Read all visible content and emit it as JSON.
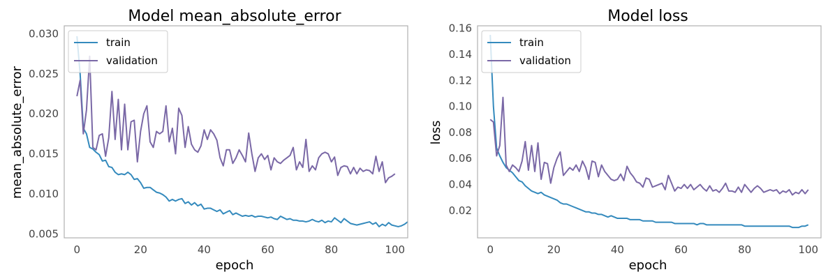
{
  "chart_data": [
    {
      "type": "line",
      "title": "Model mean_absolute_error",
      "xlabel": "epoch",
      "ylabel": "mean_absolute_error",
      "xlim": [
        -4,
        104
      ],
      "ylim": [
        0.0045,
        0.031
      ],
      "xticks": [
        0,
        20,
        40,
        60,
        80,
        100
      ],
      "xtick_labels": [
        "0",
        "20",
        "40",
        "60",
        "80",
        "100"
      ],
      "yticks": [
        0.005,
        0.01,
        0.015,
        0.02,
        0.025,
        0.03
      ],
      "ytick_labels": [
        "0.005",
        "0.010",
        "0.015",
        "0.020",
        "0.025",
        "0.030"
      ],
      "grid": false,
      "legend_position": "top-left",
      "series": [
        {
          "name": "train",
          "color": "#348abd",
          "values": [
            0.0297,
            0.025,
            0.0182,
            0.0175,
            0.0158,
            0.0156,
            0.0152,
            0.0149,
            0.0141,
            0.0142,
            0.0134,
            0.0133,
            0.0127,
            0.0124,
            0.0125,
            0.0124,
            0.0127,
            0.0124,
            0.0118,
            0.0119,
            0.0114,
            0.0107,
            0.0108,
            0.0108,
            0.0105,
            0.0102,
            0.0101,
            0.0099,
            0.0096,
            0.0091,
            0.0093,
            0.0091,
            0.0093,
            0.0094,
            0.0088,
            0.009,
            0.0086,
            0.0089,
            0.0085,
            0.0087,
            0.0081,
            0.0082,
            0.0082,
            0.008,
            0.0078,
            0.008,
            0.0075,
            0.0077,
            0.0079,
            0.0074,
            0.0076,
            0.0074,
            0.0072,
            0.0073,
            0.0072,
            0.0073,
            0.0071,
            0.0072,
            0.0072,
            0.0071,
            0.007,
            0.0071,
            0.0069,
            0.0068,
            0.0072,
            0.007,
            0.0068,
            0.0069,
            0.0067,
            0.0067,
            0.0066,
            0.0066,
            0.0065,
            0.0066,
            0.0068,
            0.0066,
            0.0065,
            0.0067,
            0.0064,
            0.0066,
            0.0065,
            0.007,
            0.0067,
            0.0064,
            0.0069,
            0.0066,
            0.0063,
            0.0062,
            0.0061,
            0.0062,
            0.0063,
            0.0064,
            0.0065,
            0.0062,
            0.0064,
            0.0059,
            0.0062,
            0.006,
            0.0064,
            0.0061,
            0.006,
            0.0059,
            0.006,
            0.0062,
            0.0065
          ]
        },
        {
          "name": "validation",
          "color": "#7a68a6",
          "values": [
            0.0222,
            0.0242,
            0.0175,
            0.0205,
            0.0272,
            0.0158,
            0.0155,
            0.0173,
            0.0175,
            0.0147,
            0.017,
            0.0228,
            0.0168,
            0.0218,
            0.0155,
            0.0212,
            0.0155,
            0.019,
            0.0192,
            0.014,
            0.0178,
            0.02,
            0.021,
            0.0165,
            0.0158,
            0.0178,
            0.0175,
            0.0178,
            0.021,
            0.0165,
            0.0182,
            0.015,
            0.0207,
            0.0198,
            0.0158,
            0.0184,
            0.0162,
            0.0155,
            0.0152,
            0.016,
            0.018,
            0.0168,
            0.018,
            0.0175,
            0.0167,
            0.0145,
            0.0135,
            0.0155,
            0.0155,
            0.0138,
            0.0145,
            0.0155,
            0.0148,
            0.014,
            0.0176,
            0.015,
            0.0128,
            0.0145,
            0.015,
            0.0143,
            0.0148,
            0.013,
            0.0145,
            0.014,
            0.0138,
            0.0142,
            0.0145,
            0.0148,
            0.0158,
            0.013,
            0.014,
            0.0133,
            0.0168,
            0.0128,
            0.0135,
            0.013,
            0.0145,
            0.015,
            0.0152,
            0.015,
            0.014,
            0.0146,
            0.0123,
            0.0133,
            0.0135,
            0.0134,
            0.0125,
            0.0133,
            0.0125,
            0.0132,
            0.0128,
            0.013,
            0.0129,
            0.0125,
            0.0147,
            0.0128,
            0.014,
            0.0114,
            0.012,
            0.0122,
            0.0125
          ]
        }
      ]
    },
    {
      "type": "line",
      "title": "Model loss",
      "xlabel": "epoch",
      "ylabel": "loss",
      "xlim": [
        -4,
        104
      ],
      "ylim": [
        -0.001,
        0.162
      ],
      "xticks": [
        0,
        20,
        40,
        60,
        80,
        100
      ],
      "xtick_labels": [
        "0",
        "20",
        "40",
        "60",
        "80",
        "100"
      ],
      "yticks": [
        0.02,
        0.04,
        0.06,
        0.08,
        0.1,
        0.12,
        0.14,
        0.16
      ],
      "ytick_labels": [
        "0.02",
        "0.04",
        "0.06",
        "0.08",
        "0.10",
        "0.12",
        "0.14",
        "0.16"
      ],
      "grid": false,
      "legend_position": "top-left",
      "series": [
        {
          "name": "train",
          "color": "#348abd",
          "values": [
            0.155,
            0.1,
            0.068,
            0.062,
            0.057,
            0.053,
            0.051,
            0.049,
            0.046,
            0.043,
            0.042,
            0.039,
            0.037,
            0.035,
            0.034,
            0.033,
            0.034,
            0.032,
            0.031,
            0.03,
            0.029,
            0.028,
            0.026,
            0.025,
            0.025,
            0.024,
            0.023,
            0.022,
            0.021,
            0.02,
            0.019,
            0.019,
            0.018,
            0.018,
            0.017,
            0.017,
            0.016,
            0.015,
            0.016,
            0.015,
            0.014,
            0.014,
            0.014,
            0.014,
            0.013,
            0.013,
            0.013,
            0.013,
            0.012,
            0.012,
            0.012,
            0.012,
            0.011,
            0.011,
            0.011,
            0.011,
            0.011,
            0.011,
            0.01,
            0.01,
            0.01,
            0.01,
            0.01,
            0.01,
            0.01,
            0.009,
            0.01,
            0.01,
            0.009,
            0.009,
            0.009,
            0.009,
            0.009,
            0.009,
            0.009,
            0.009,
            0.009,
            0.009,
            0.009,
            0.009,
            0.008,
            0.008,
            0.008,
            0.008,
            0.008,
            0.008,
            0.008,
            0.008,
            0.008,
            0.008,
            0.008,
            0.008,
            0.008,
            0.008,
            0.008,
            0.007,
            0.007,
            0.007,
            0.008,
            0.008,
            0.009
          ]
        },
        {
          "name": "validation",
          "color": "#7a68a6",
          "values": [
            0.09,
            0.088,
            0.062,
            0.07,
            0.107,
            0.055,
            0.05,
            0.055,
            0.053,
            0.05,
            0.058,
            0.073,
            0.051,
            0.07,
            0.05,
            0.072,
            0.044,
            0.057,
            0.056,
            0.041,
            0.053,
            0.06,
            0.065,
            0.047,
            0.05,
            0.053,
            0.051,
            0.055,
            0.05,
            0.058,
            0.053,
            0.044,
            0.058,
            0.057,
            0.046,
            0.055,
            0.05,
            0.047,
            0.044,
            0.043,
            0.044,
            0.048,
            0.043,
            0.054,
            0.049,
            0.046,
            0.042,
            0.041,
            0.038,
            0.045,
            0.044,
            0.038,
            0.039,
            0.04,
            0.041,
            0.036,
            0.047,
            0.041,
            0.035,
            0.038,
            0.037,
            0.04,
            0.037,
            0.04,
            0.036,
            0.038,
            0.04,
            0.037,
            0.035,
            0.039,
            0.035,
            0.036,
            0.034,
            0.037,
            0.041,
            0.035,
            0.035,
            0.034,
            0.038,
            0.034,
            0.04,
            0.037,
            0.034,
            0.037,
            0.039,
            0.037,
            0.034,
            0.035,
            0.036,
            0.035,
            0.036,
            0.033,
            0.035,
            0.034,
            0.036,
            0.032,
            0.034,
            0.033,
            0.036,
            0.033,
            0.036
          ]
        }
      ]
    }
  ],
  "panels": [
    {
      "title": "Model mean_absolute_error",
      "xlabel": "epoch",
      "ylabel": "mean_absolute_error",
      "legend": [
        "train",
        "validation"
      ]
    },
    {
      "title": "Model loss",
      "xlabel": "epoch",
      "ylabel": "loss",
      "legend": [
        "train",
        "validation"
      ]
    }
  ]
}
